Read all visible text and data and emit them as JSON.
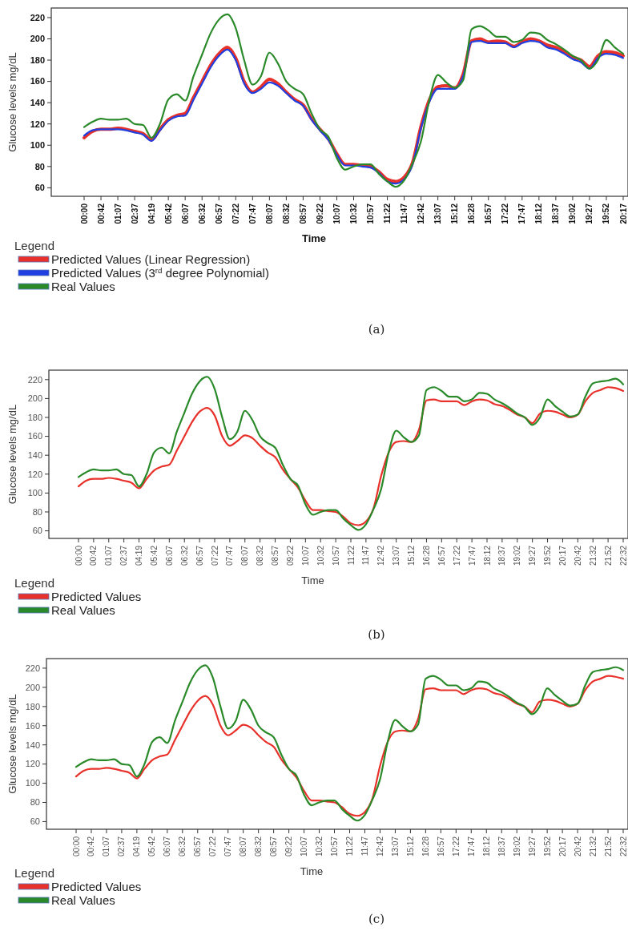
{
  "chart_data": [
    {
      "type": "line",
      "annotations": [
        "(a)"
      ],
      "xlabel": "Time",
      "ylabel": "Glucose levels mg/dL",
      "legend_title": "Legend",
      "legend": "bottom left",
      "grid": false,
      "categories": [
        "00:00",
        null,
        "00:42",
        null,
        "01:07",
        null,
        "02:37",
        null,
        "04:19",
        null,
        "05:42",
        null,
        "06:07",
        null,
        "06:32",
        null,
        "06:57",
        null,
        "07:22",
        null,
        "07:47",
        null,
        "08:07",
        null,
        "08:32",
        null,
        "08:57",
        null,
        "09:22",
        null,
        "10:07",
        null,
        "10:32",
        null,
        "10:57",
        null,
        "11:22",
        null,
        "11:47",
        null,
        "12:42",
        null,
        "13:07",
        null,
        "15:12",
        null,
        "16:28",
        null,
        "16:57",
        null,
        "17:22",
        null,
        "17:47",
        null,
        "18:12",
        null,
        "18:37",
        null,
        "19:02",
        null,
        "19:27",
        null,
        "19:52",
        null,
        "20:17"
      ],
      "ylim": [
        52,
        229
      ],
      "yticks": [
        60,
        80,
        100,
        120,
        140,
        160,
        180,
        200,
        220
      ],
      "series": [
        {
          "name": "Predicted Values (Linear Regression)",
          "color": "#e8312a",
          "values": [
            107,
            113,
            115,
            115,
            116,
            115,
            113,
            111,
            105,
            115,
            124,
            128,
            130,
            145,
            160,
            175,
            186,
            192,
            182,
            160,
            150,
            155,
            162,
            158,
            150,
            143,
            138,
            125,
            115,
            106,
            92,
            82,
            82,
            81,
            80,
            75,
            68,
            66,
            70,
            84,
            118,
            143,
            155,
            156,
            154,
            167,
            198,
            200,
            197,
            198,
            197,
            193,
            197,
            200,
            198,
            194,
            192,
            188,
            183,
            180,
            174,
            184,
            188,
            187,
            184
          ]
        },
        {
          "name": "Predicted Values (3$^{rd}$ degree Polynomial)",
          "color": "#1f3fe0",
          "values": [
            109,
            114,
            115,
            115,
            115,
            114,
            112,
            110,
            104,
            114,
            123,
            127,
            128,
            143,
            158,
            173,
            184,
            190,
            180,
            158,
            149,
            153,
            159,
            156,
            149,
            142,
            137,
            124,
            114,
            105,
            91,
            81,
            81,
            80,
            79,
            74,
            66,
            64,
            68,
            82,
            116,
            141,
            153,
            153,
            153,
            165,
            197,
            198,
            196,
            196,
            196,
            192,
            196,
            198,
            197,
            192,
            190,
            186,
            181,
            178,
            172,
            182,
            186,
            185,
            182
          ]
        },
        {
          "name": "Real Values",
          "color": "#2a8a2a",
          "values": [
            117,
            122,
            125,
            124,
            124,
            125,
            120,
            119,
            107,
            120,
            143,
            148,
            142,
            165,
            185,
            205,
            218,
            223,
            210,
            180,
            157,
            165,
            187,
            177,
            160,
            153,
            148,
            130,
            115,
            108,
            88,
            77,
            80,
            82,
            82,
            73,
            66,
            61,
            67,
            83,
            104,
            143,
            166,
            159,
            154,
            161,
            209,
            212,
            208,
            202,
            202,
            197,
            199,
            206,
            205,
            199,
            195,
            190,
            184,
            180,
            172,
            180,
            199,
            192,
            186
          ]
        }
      ]
    },
    {
      "type": "line",
      "annotations": [
        "(b)"
      ],
      "xlabel": "Time",
      "ylabel": "Glucose levels mg/dL",
      "legend_title": "Legend",
      "legend": "bottom left",
      "grid": false,
      "categories": [
        "00:00",
        null,
        "00:42",
        null,
        "01:07",
        null,
        "02:37",
        null,
        "04:19",
        null,
        "05:42",
        null,
        "06:07",
        null,
        "06:32",
        null,
        "06:57",
        null,
        "07:22",
        null,
        "07:47",
        null,
        "08:07",
        null,
        "08:32",
        null,
        "08:57",
        null,
        "09:22",
        null,
        "10:07",
        null,
        "10:32",
        null,
        "10:57",
        null,
        "11:22",
        null,
        "11:47",
        null,
        "12:42",
        null,
        "13:07",
        null,
        "15:12",
        null,
        "16:28",
        null,
        "16:57",
        null,
        "17:22",
        null,
        "17:47",
        null,
        "18:12",
        null,
        "18:37",
        null,
        "19:02",
        null,
        "19:27",
        null,
        "19:52",
        null,
        "20:17",
        null,
        "20:42",
        null,
        "21:32",
        null,
        "21:52",
        null,
        "22:32"
      ],
      "ylim": [
        52,
        230
      ],
      "yticks": [
        60,
        80,
        100,
        120,
        140,
        160,
        180,
        200,
        220
      ],
      "series": [
        {
          "name": "Predicted Values",
          "color": "#e8312a",
          "values": [
            107,
            113,
            115,
            115,
            116,
            115,
            113,
            111,
            105,
            115,
            124,
            128,
            130,
            145,
            160,
            175,
            186,
            190,
            182,
            160,
            150,
            155,
            161,
            158,
            150,
            143,
            138,
            125,
            115,
            106,
            92,
            82,
            82,
            81,
            80,
            75,
            68,
            66,
            70,
            84,
            118,
            143,
            154,
            155,
            154,
            167,
            198,
            199,
            197,
            197,
            197,
            193,
            197,
            199,
            198,
            194,
            192,
            188,
            183,
            180,
            174,
            184,
            187,
            186,
            183,
            180,
            183,
            197,
            206,
            209,
            212,
            211,
            208
          ]
        },
        {
          "name": "Real Values",
          "color": "#2a8a2a",
          "values": [
            117,
            122,
            125,
            124,
            124,
            125,
            120,
            119,
            107,
            120,
            143,
            148,
            142,
            165,
            185,
            205,
            218,
            223,
            210,
            180,
            157,
            165,
            187,
            177,
            160,
            153,
            148,
            130,
            115,
            108,
            88,
            77,
            80,
            82,
            82,
            73,
            66,
            61,
            67,
            83,
            104,
            143,
            166,
            159,
            154,
            161,
            209,
            212,
            208,
            202,
            202,
            197,
            199,
            206,
            205,
            199,
            195,
            190,
            184,
            180,
            172,
            180,
            199,
            192,
            186,
            181,
            183,
            202,
            216,
            218,
            219,
            221,
            215
          ]
        }
      ]
    },
    {
      "type": "line",
      "annotations": [
        "(c)"
      ],
      "xlabel": "Time",
      "ylabel": "Glucose levels mg/dL",
      "legend_title": "Legend",
      "legend": "bottom left",
      "grid": false,
      "categories": [
        "00:00",
        null,
        "00:42",
        null,
        "01:07",
        null,
        "02:37",
        null,
        "04:19",
        null,
        "05:42",
        null,
        "06:07",
        null,
        "06:32",
        null,
        "06:57",
        null,
        "07:22",
        null,
        "07:47",
        null,
        "08:07",
        null,
        "08:32",
        null,
        "08:57",
        null,
        "09:22",
        null,
        "10:07",
        null,
        "10:32",
        null,
        "10:57",
        null,
        "11:22",
        null,
        "11:47",
        null,
        "12:42",
        null,
        "13:07",
        null,
        "15:12",
        null,
        "16:28",
        null,
        "16:57",
        null,
        "17:22",
        null,
        "17:47",
        null,
        "18:12",
        null,
        "18:37",
        null,
        "19:02",
        null,
        "19:27",
        null,
        "19:52",
        null,
        "20:17",
        null,
        "20:42",
        null,
        "21:32",
        null,
        "21:52",
        null,
        "22:32"
      ],
      "ylim": [
        52,
        230
      ],
      "yticks": [
        60,
        80,
        100,
        120,
        140,
        160,
        180,
        200,
        220
      ],
      "series": [
        {
          "name": "Predicted Values",
          "color": "#e8312a",
          "values": [
            107,
            113,
            115,
            115,
            116,
            115,
            113,
            111,
            105,
            115,
            124,
            128,
            130,
            145,
            160,
            175,
            186,
            191,
            182,
            160,
            150,
            155,
            161,
            158,
            150,
            143,
            138,
            125,
            115,
            106,
            92,
            82,
            82,
            81,
            80,
            75,
            68,
            66,
            70,
            84,
            118,
            143,
            154,
            155,
            154,
            167,
            198,
            199,
            197,
            197,
            197,
            193,
            197,
            199,
            198,
            194,
            192,
            188,
            183,
            180,
            174,
            185,
            187,
            186,
            183,
            180,
            183,
            197,
            206,
            209,
            212,
            211,
            209
          ]
        },
        {
          "name": "Real Values",
          "color": "#2a8a2a",
          "values": [
            117,
            122,
            125,
            124,
            124,
            125,
            120,
            119,
            107,
            120,
            143,
            148,
            142,
            165,
            185,
            205,
            218,
            223,
            210,
            180,
            157,
            165,
            187,
            177,
            160,
            153,
            148,
            130,
            115,
            108,
            88,
            77,
            80,
            82,
            82,
            73,
            66,
            61,
            67,
            83,
            104,
            143,
            166,
            159,
            154,
            161,
            209,
            212,
            208,
            202,
            202,
            197,
            199,
            206,
            205,
            199,
            195,
            190,
            184,
            180,
            172,
            180,
            199,
            192,
            186,
            181,
            183,
            202,
            216,
            218,
            219,
            221,
            218
          ]
        }
      ]
    }
  ]
}
